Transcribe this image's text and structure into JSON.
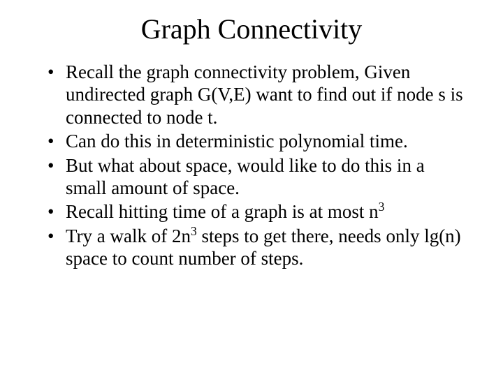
{
  "title": "Graph Connectivity",
  "bullets": [
    {
      "html": "Recall the graph connectivity problem, Given undirected graph G(V,E) want to find out if node s is connected to node t."
    },
    {
      "html": "Can do this in deterministic polynomial time."
    },
    {
      "html": "But what about space, would like to do this in a small amount of space."
    },
    {
      "html": "Recall hitting time of a graph is at most n<sup>3</sup>"
    },
    {
      "html": "Try a walk of 2n<sup>3</sup> steps to get there, needs only lg(n) space to count number of steps."
    }
  ],
  "styling": {
    "background_color": "#ffffff",
    "text_color": "#000000",
    "font_family": "Times New Roman",
    "title_fontsize": 40,
    "body_fontsize": 27,
    "slide_width": 720,
    "slide_height": 540
  }
}
